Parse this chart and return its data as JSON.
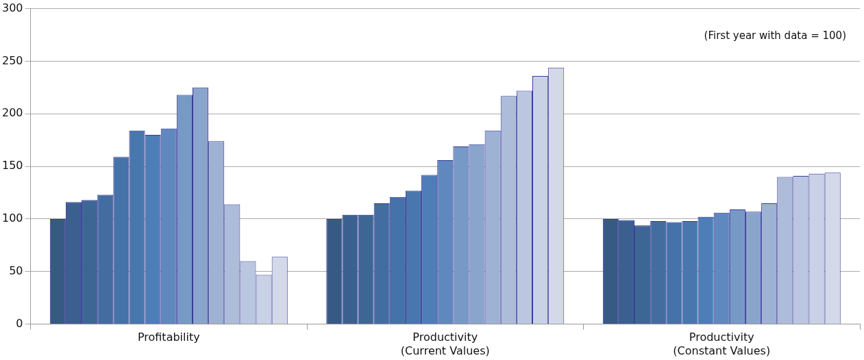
{
  "chart_data": {
    "type": "bar",
    "categories": [
      "Profitability",
      "Productivity\n(Current Values)",
      "Productivity\n(Constant Values)"
    ],
    "series": [
      {
        "color": "#375a85",
        "values": [
          100,
          100,
          100
        ]
      },
      {
        "color": "#3b6090",
        "values": [
          116,
          104,
          99
        ]
      },
      {
        "color": "#3e6695",
        "values": [
          118,
          104,
          94
        ]
      },
      {
        "color": "#436da0",
        "values": [
          123,
          115,
          98
        ]
      },
      {
        "color": "#4572a8",
        "values": [
          159,
          121,
          97
        ]
      },
      {
        "color": "#4877ae",
        "values": [
          184,
          127,
          98
        ]
      },
      {
        "color": "#4d7eb8",
        "values": [
          180,
          142,
          102
        ]
      },
      {
        "color": "#5f89be",
        "values": [
          186,
          156,
          106
        ]
      },
      {
        "color": "#7799c6",
        "values": [
          218,
          169,
          109
        ]
      },
      {
        "color": "#8aa5cb",
        "values": [
          225,
          171,
          107
        ]
      },
      {
        "color": "#9eb2d3",
        "values": [
          174,
          184,
          115
        ]
      },
      {
        "color": "#adbcd9",
        "values": [
          114,
          217,
          140
        ]
      },
      {
        "color": "#bbc7e0",
        "values": [
          60,
          222,
          141
        ]
      },
      {
        "color": "#c9d1e6",
        "values": [
          47,
          236,
          143
        ]
      },
      {
        "color": "#d3d9e8",
        "values": [
          64,
          244,
          144
        ]
      }
    ],
    "ylim": [
      0,
      300
    ],
    "yticks": [
      0,
      50,
      100,
      150,
      200,
      250,
      300
    ],
    "grid": "y",
    "legend": false,
    "annotations": [
      "(First year with data = 100)"
    ]
  }
}
